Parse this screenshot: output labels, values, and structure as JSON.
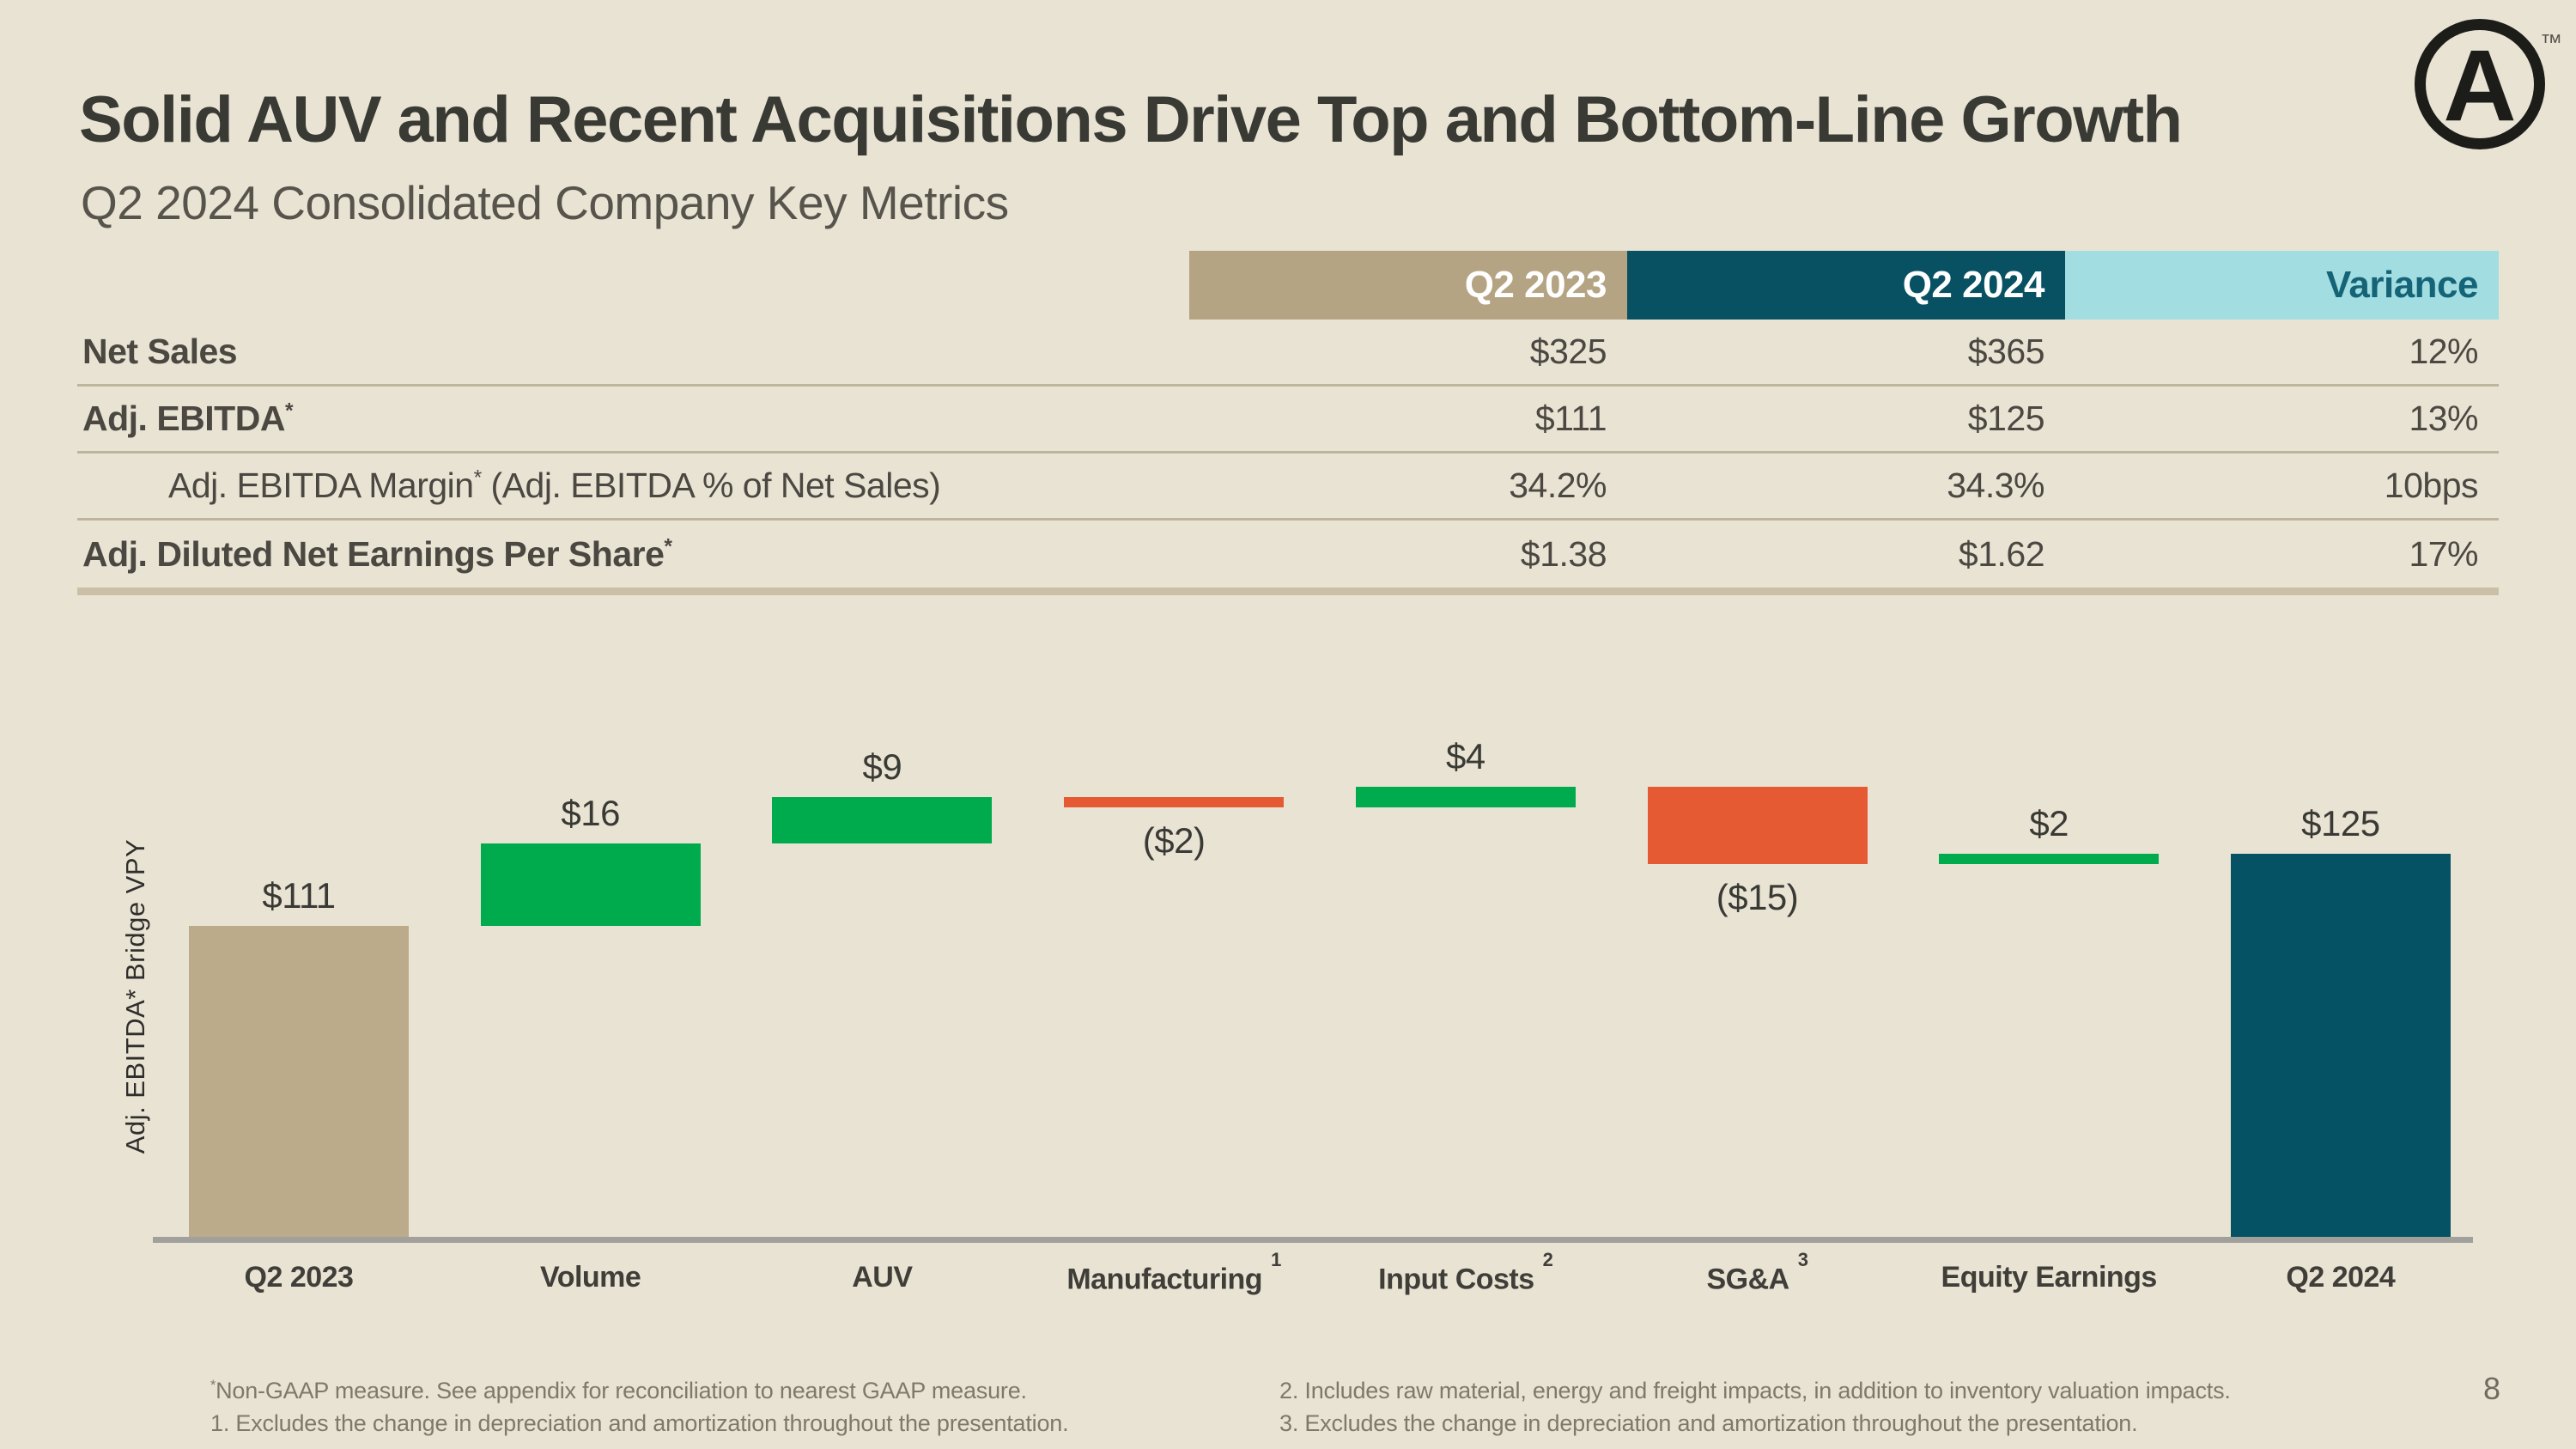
{
  "slide": {
    "title": "Solid AUV and Recent Acquisitions Drive Top and Bottom-Line Growth",
    "subtitle": "Q2 2024 Consolidated Company Key Metrics",
    "page_number": "8",
    "logo_letter": "A",
    "logo_tm": "™"
  },
  "table": {
    "columns": [
      "Q2 2023",
      "Q2 2024",
      "Variance"
    ],
    "rows": [
      {
        "label": "Net Sales",
        "sup": "",
        "suffix": "",
        "bold": true,
        "indent": false,
        "values": [
          "$325",
          "$365",
          "12%"
        ]
      },
      {
        "label": "Adj. EBITDA",
        "sup": "*",
        "suffix": "",
        "bold": true,
        "indent": false,
        "values": [
          "$111",
          "$125",
          "13%"
        ]
      },
      {
        "label": "Adj. EBITDA Margin",
        "sup": "*",
        "suffix": " (Adj. EBITDA % of Net Sales)",
        "bold": false,
        "indent": true,
        "values": [
          "34.2%",
          "34.3%",
          "10bps"
        ]
      },
      {
        "label": "Adj. Diluted Net Earnings Per Share",
        "sup": "*",
        "suffix": "",
        "bold": true,
        "indent": false,
        "values": [
          "$1.38",
          "$1.62",
          "17%"
        ]
      }
    ]
  },
  "chart_data": {
    "type": "waterfall",
    "title": "",
    "y_axis_label": "Adj. EBITDA* Bridge VPY",
    "categories": [
      "Q2 2023",
      "Volume",
      "AUV",
      "Manufacturing",
      "Input Costs",
      "SG&A",
      "Equity Earnings",
      "Q2 2024"
    ],
    "category_superscripts": [
      "",
      "",
      "",
      "1",
      "2",
      "3",
      "",
      ""
    ],
    "values": [
      111,
      16,
      9,
      -2,
      4,
      -15,
      2,
      125
    ],
    "bar_types": [
      "total",
      "delta",
      "delta",
      "delta",
      "delta",
      "delta",
      "delta",
      "total"
    ],
    "data_labels": [
      "$111",
      "$16",
      "$9",
      "($2)",
      "$4",
      "($15)",
      "$2",
      "$125"
    ],
    "label_positions": [
      "above",
      "above",
      "above",
      "below",
      "above",
      "below",
      "above",
      "above"
    ],
    "gridlines": false,
    "legend": false,
    "note": "start and end totals drawn with compressed scale; deltas chained from $111 level"
  },
  "footnotes": {
    "left": [
      {
        "sup": "*",
        "text": "Non-GAAP measure. See appendix for reconciliation to nearest GAAP measure."
      },
      {
        "sup": "",
        "text": "1. Excludes the change in depreciation and amortization throughout the presentation."
      }
    ],
    "right": [
      {
        "sup": "",
        "text": "2. Includes raw material, energy and freight impacts, in addition to inventory valuation impacts."
      },
      {
        "sup": "",
        "text": "3. Excludes the change in depreciation and amortization throughout the presentation."
      }
    ]
  },
  "colors": {
    "background": "#e9e3d4",
    "tan": "#b5a483",
    "tan_bar": "#bcab8b",
    "teal": "#075162",
    "teal_bar": "#045264",
    "cyan": "#a2dde1",
    "variance_text": "#156376",
    "green": "#00ab4e",
    "orange": "#e65a33",
    "axis_gray": "#a1a09c",
    "divider": "#bdb49c"
  }
}
